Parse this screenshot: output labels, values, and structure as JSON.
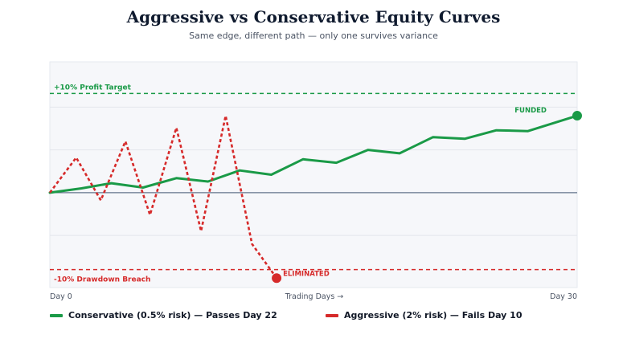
{
  "header": {
    "title": "Aggressive vs Conservative Equity Curves",
    "subtitle": "Same edge, different path — only one survives variance"
  },
  "colors": {
    "conservative": "#1a9a47",
    "aggressive": "#d62a2a",
    "baseline": "#64748b",
    "plot_bg": "#f6f7fa",
    "grid": "#e3e6ec"
  },
  "chart_data": {
    "type": "line",
    "title": "Aggressive vs Conservative Equity Curves",
    "subtitle": "Same edge, different path — only one survives variance",
    "xlabel": "Trading Days →",
    "x_ticks": [
      "Day 0",
      "Day 30"
    ],
    "xlim": [
      0,
      30
    ],
    "ylim": [
      -11.1,
      15.3
    ],
    "grid": true,
    "legend_position": "bottom",
    "series": [
      {
        "name": "Conservative (0.5% risk) — Passes Day 22",
        "style": "solid",
        "x": [
          0,
          1.8,
          3.5,
          5.3,
          7.2,
          9,
          10.8,
          12.6,
          14.4,
          16.3,
          18.1,
          19.9,
          21.8,
          23.6,
          25.4,
          27.2,
          30
        ],
        "y": [
          0,
          0.5,
          1.1,
          0.6,
          1.7,
          1.3,
          2.6,
          2.1,
          3.9,
          3.5,
          5.0,
          4.6,
          6.5,
          6.3,
          7.3,
          7.2,
          9.0
        ]
      },
      {
        "name": "Aggressive (2% risk) — Fails Day 10",
        "style": "dashed",
        "x": [
          0,
          1.5,
          2.9,
          4.3,
          5.7,
          7.2,
          8.6,
          10,
          11.5,
          12.9
        ],
        "y": [
          0,
          4.1,
          -0.9,
          6.0,
          -2.6,
          7.6,
          -4.5,
          9.0,
          -6.0,
          -10.0
        ]
      }
    ],
    "reference_lines": [
      {
        "label": "+10% Profit Target",
        "y": 11.6,
        "style": "dashed"
      },
      {
        "label": "-10% Drawdown Breach",
        "y": -9.0,
        "style": "dashed"
      }
    ],
    "annotations": [
      {
        "text": "FUNDED",
        "series": 0
      },
      {
        "text": "ELIMINATED",
        "series": 1
      }
    ]
  }
}
